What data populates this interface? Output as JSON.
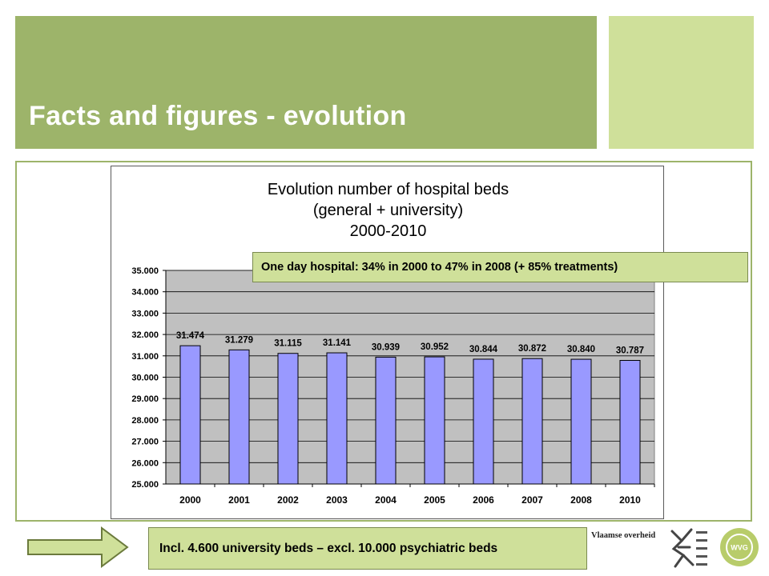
{
  "slide": {
    "title": "Facts and figures - evolution",
    "annotation": "One day hospital: 34% in 2000 to 47% in 2008 (+ 85% treatments)",
    "footnote": "Incl. 4.600 university beds – excl. 10.000 psychiatric beds",
    "logos": {
      "government": "Vlaamse overheid",
      "agency": "WVG"
    }
  },
  "colors": {
    "title_band": "#9db46a",
    "accent_band": "#cfe09a",
    "bar_fill": "#9999ff",
    "plot_background": "#c0c0c0"
  },
  "chart_data": {
    "type": "bar",
    "title_lines": [
      "Evolution number of hospital beds",
      "(general + university)",
      "2000-2010"
    ],
    "categories": [
      "2000",
      "2001",
      "2002",
      "2003",
      "2004",
      "2005",
      "2006",
      "2007",
      "2008",
      "2010"
    ],
    "values": [
      31474,
      31279,
      31115,
      31141,
      30939,
      30952,
      30844,
      30872,
      30840,
      30787
    ],
    "data_labels": [
      "31.474",
      "31.279",
      "31.115",
      "31.141",
      "30.939",
      "30.952",
      "30.844",
      "30.872",
      "30.840",
      "30.787"
    ],
    "ylim": [
      25000,
      35000
    ],
    "yticks": [
      25000,
      26000,
      27000,
      28000,
      29000,
      30000,
      31000,
      32000,
      33000,
      34000,
      35000
    ],
    "ytick_labels": [
      "25.000",
      "26.000",
      "27.000",
      "28.000",
      "29.000",
      "30.000",
      "31.000",
      "32.000",
      "33.000",
      "34.000",
      "35.000"
    ],
    "grid": true,
    "legend": "none",
    "xlabel": "",
    "ylabel": ""
  }
}
